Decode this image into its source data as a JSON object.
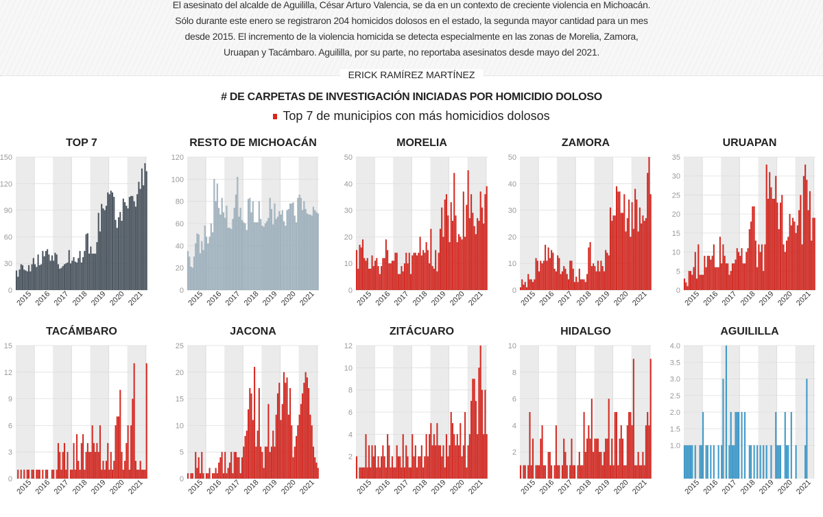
{
  "intro": {
    "lines": [
      "El asesinato del alcalde de Aguililla, César Arturo Valencia, se da en un contexto de creciente violencia en Michoacán.",
      "Sólo durante este enero se registraron 204 homicidos dolosos en el estado, la segunda mayor cantidad para un mes",
      "desde 2015. El incremento de la violencia homicida se detecta especialmente en las zonas de Morelia, Zamora,",
      "Uruapan y Tacámbaro. Aguililla, por su parte, no reportaba asesinatos desde mayo del 2021."
    ]
  },
  "author": "ERICK RAMÍREZ MARTÍNEZ",
  "headline": "# DE CARPETAS DE INVESTIGACIÓN INICIADAS POR HOMICIDIO DOLOSO",
  "legend": {
    "label": "Top 7 de municipios con más homicidios dolosos",
    "color": "#d9241c"
  },
  "colors": {
    "top7": "#4b5661",
    "resto": "#a8bcc9",
    "red": "#e0261e",
    "blue": "#3b9fd4",
    "band": "#ebebeb"
  },
  "chart_data": [
    {
      "type": "bar",
      "title": "TOP 7",
      "color": "top7",
      "ylim": [
        0,
        150
      ],
      "yticks": [
        "0",
        "30",
        "60",
        "90",
        "120",
        "150"
      ],
      "xticks": [
        "2015",
        "2016",
        "2017",
        "2018",
        "2019",
        "2020",
        "2021"
      ],
      "values": [
        22,
        15,
        23,
        29,
        28,
        23,
        22,
        21,
        28,
        21,
        29,
        36,
        29,
        26,
        40,
        28,
        29,
        44,
        38,
        44,
        46,
        40,
        33,
        39,
        33,
        42,
        40,
        29,
        24,
        25,
        27,
        29,
        30,
        31,
        45,
        30,
        33,
        37,
        32,
        31,
        36,
        44,
        31,
        37,
        44,
        63,
        64,
        41,
        49,
        41,
        41,
        41,
        54,
        87,
        66,
        97,
        92,
        90,
        95,
        110,
        108,
        112,
        110,
        105,
        79,
        70,
        82,
        88,
        78,
        103,
        99,
        95,
        92,
        105,
        106,
        106,
        100,
        94,
        108,
        122,
        114,
        137,
        118,
        143,
        134
      ]
    },
    {
      "type": "bar",
      "title": "RESTO DE MICHOACÁN",
      "color": "resto",
      "ylim": [
        0,
        120
      ],
      "yticks": [
        "0",
        "20",
        "40",
        "60",
        "80",
        "100",
        "120"
      ],
      "xticks": [
        "2015",
        "2016",
        "2017",
        "2018",
        "2019",
        "2020",
        "2021"
      ],
      "values": [
        35,
        30,
        21,
        20,
        30,
        42,
        51,
        50,
        33,
        44,
        36,
        58,
        48,
        42,
        48,
        60,
        52,
        100,
        80,
        96,
        74,
        68,
        83,
        70,
        65,
        76,
        56,
        56,
        55,
        64,
        74,
        86,
        102,
        66,
        74,
        63,
        61,
        60,
        54,
        82,
        83,
        70,
        80,
        61,
        61,
        61,
        80,
        64,
        58,
        57,
        60,
        62,
        65,
        83,
        73,
        59,
        78,
        64,
        66,
        71,
        68,
        72,
        62,
        58,
        72,
        73,
        78,
        78,
        79,
        67,
        61,
        83,
        86,
        83,
        72,
        80,
        73,
        69,
        68,
        68,
        67,
        75,
        72,
        70,
        69
      ]
    },
    {
      "type": "bar",
      "title": "MORELIA",
      "color": "red",
      "ylim": [
        0,
        50
      ],
      "yticks": [
        "0",
        "10",
        "20",
        "30",
        "40",
        "50"
      ],
      "xticks": [
        "2015",
        "2016",
        "2017",
        "2018",
        "2019",
        "2020",
        "2021"
      ],
      "values": [
        15,
        8,
        17,
        16,
        19,
        12,
        11,
        12,
        8,
        8,
        13,
        9,
        11,
        12,
        9,
        6,
        9,
        12,
        12,
        19,
        15,
        10,
        10,
        11,
        11,
        14,
        14,
        6,
        6,
        9,
        7,
        10,
        14,
        10,
        14,
        6,
        13,
        14,
        14,
        13,
        14,
        20,
        13,
        15,
        14,
        18,
        15,
        10,
        23,
        9,
        8,
        15,
        7,
        14,
        23,
        31,
        20,
        34,
        36,
        28,
        18,
        33,
        26,
        44,
        28,
        18,
        21,
        20,
        19,
        37,
        20,
        32,
        45,
        27,
        36,
        29,
        24,
        21,
        27,
        26,
        37,
        31,
        25,
        36,
        39
      ]
    },
    {
      "type": "bar",
      "title": "ZAMORA",
      "color": "red",
      "ylim": [
        0,
        50
      ],
      "yticks": [
        "0",
        "10",
        "20",
        "30",
        "40",
        "50"
      ],
      "xticks": [
        "2015",
        "2016",
        "2017",
        "2018",
        "2019",
        "2020",
        "2021"
      ],
      "values": [
        1,
        4,
        2,
        3,
        1,
        6,
        4,
        4,
        3,
        4,
        12,
        11,
        7,
        11,
        10,
        11,
        17,
        11,
        16,
        12,
        15,
        14,
        8,
        7,
        13,
        12,
        6,
        7,
        9,
        8,
        6,
        4,
        11,
        11,
        8,
        3,
        5,
        3,
        8,
        4,
        4,
        4,
        3,
        6,
        16,
        18,
        9,
        10,
        9,
        7,
        11,
        7,
        11,
        9,
        7,
        15,
        14,
        13,
        31,
        26,
        28,
        28,
        39,
        37,
        37,
        29,
        29,
        36,
        22,
        27,
        34,
        20,
        33,
        23,
        38,
        34,
        22,
        31,
        25,
        28,
        26,
        27,
        44,
        50,
        36
      ]
    },
    {
      "type": "bar",
      "title": "URUAPAN",
      "color": "red",
      "ylim": [
        0,
        35
      ],
      "yticks": [
        "0",
        "5",
        "10",
        "15",
        "20",
        "25",
        "30",
        "35"
      ],
      "xticks": [
        "2015",
        "2016",
        "2017",
        "2018",
        "2019",
        "2020",
        "2021"
      ],
      "values": [
        3,
        2,
        1,
        5,
        5,
        4,
        6,
        10,
        3,
        12,
        4,
        4,
        4,
        9,
        6,
        9,
        9,
        8,
        9,
        12,
        6,
        6,
        6,
        14,
        7,
        12,
        9,
        7,
        7,
        4,
        5,
        7,
        7,
        8,
        11,
        10,
        9,
        11,
        7,
        7,
        10,
        11,
        16,
        18,
        22,
        22,
        13,
        6,
        12,
        10,
        12,
        5,
        12,
        33,
        24,
        31,
        27,
        24,
        24,
        30,
        23,
        16,
        23,
        25,
        12,
        10,
        13,
        14,
        20,
        17,
        19,
        18,
        15,
        17,
        21,
        25,
        12,
        30,
        33,
        29,
        21,
        26,
        13,
        19,
        19
      ]
    },
    {
      "type": "bar",
      "title": "TACÁMBARO",
      "color": "red",
      "ylim": [
        0,
        15
      ],
      "yticks": [
        "0",
        "3",
        "6",
        "9",
        "12",
        "15"
      ],
      "xticks": [
        "2015",
        "2016",
        "2017",
        "2018",
        "2019",
        "2020",
        "2021"
      ],
      "values": [
        0,
        1,
        0,
        1,
        0,
        1,
        0,
        1,
        1,
        0,
        1,
        1,
        0,
        1,
        1,
        1,
        0,
        1,
        0,
        1,
        1,
        0,
        0,
        1,
        1,
        0,
        1,
        4,
        3,
        1,
        3,
        4,
        1,
        3,
        0,
        1,
        1,
        4,
        1,
        5,
        2,
        1,
        4,
        5,
        1,
        3,
        4,
        3,
        3,
        6,
        4,
        3,
        4,
        3,
        6,
        1,
        2,
        1,
        2,
        4,
        1,
        3,
        1,
        2,
        6,
        7,
        7,
        10,
        3,
        1,
        2,
        4,
        6,
        1,
        6,
        9,
        13,
        2,
        1,
        1,
        2,
        1,
        1,
        1,
        13
      ]
    },
    {
      "type": "bar",
      "title": "JACONA",
      "color": "red",
      "ylim": [
        0,
        25
      ],
      "yticks": [
        "0",
        "5",
        "10",
        "15",
        "20",
        "25"
      ],
      "xticks": [
        "2015",
        "2016",
        "2017",
        "2018",
        "2019",
        "2020",
        "2021"
      ],
      "values": [
        1,
        0,
        1,
        1,
        0,
        5,
        2,
        4,
        1,
        5,
        1,
        0,
        1,
        1,
        2,
        0,
        1,
        1,
        2,
        1,
        3,
        4,
        5,
        1,
        5,
        1,
        2,
        3,
        5,
        1,
        5,
        5,
        4,
        4,
        1,
        4,
        6,
        8,
        9,
        13,
        17,
        16,
        11,
        21,
        6,
        9,
        17,
        6,
        5,
        2,
        6,
        6,
        14,
        5,
        6,
        9,
        6,
        12,
        16,
        18,
        11,
        14,
        20,
        18,
        19,
        12,
        17,
        10,
        4,
        6,
        8,
        10,
        12,
        14,
        16,
        18,
        20,
        19,
        17,
        12,
        10,
        6,
        4,
        3,
        2
      ]
    },
    {
      "type": "bar",
      "title": "ZITÁCUARO",
      "color": "red",
      "ylim": [
        0,
        12
      ],
      "yticks": [
        "2",
        "4",
        "6",
        "8",
        "10",
        "12"
      ],
      "xticks": [
        "2015",
        "2016",
        "2017",
        "2018",
        "2019",
        "2020",
        "2021"
      ],
      "values": [
        2,
        0,
        1,
        1,
        1,
        1,
        4,
        1,
        3,
        1,
        3,
        2,
        3,
        1,
        2,
        1,
        2,
        3,
        2,
        1,
        4,
        3,
        1,
        2,
        1,
        1,
        3,
        2,
        2,
        1,
        4,
        1,
        3,
        2,
        1,
        1,
        4,
        2,
        3,
        1,
        2,
        2,
        3,
        1,
        2,
        4,
        2,
        4,
        5,
        3,
        4,
        3,
        5,
        3,
        3,
        2,
        3,
        1,
        4,
        2,
        3,
        6,
        5,
        4,
        3,
        4,
        3,
        5,
        2,
        3,
        6,
        1,
        3,
        4,
        7,
        9,
        9,
        7,
        4,
        10,
        12,
        8,
        4,
        8,
        4
      ]
    },
    {
      "type": "bar",
      "title": "HIDALGO",
      "color": "red",
      "ylim": [
        0,
        10
      ],
      "yticks": [
        "2",
        "4",
        "6",
        "8",
        "10"
      ],
      "xticks": [
        "2015",
        "2016",
        "2017",
        "2018",
        "2019",
        "2020",
        "2021"
      ],
      "values": [
        1,
        0,
        1,
        1,
        0,
        1,
        5,
        1,
        3,
        0,
        1,
        1,
        1,
        3,
        4,
        1,
        1,
        0,
        2,
        2,
        1,
        0,
        1,
        4,
        1,
        1,
        0,
        1,
        3,
        2,
        1,
        0,
        1,
        3,
        1,
        1,
        0,
        1,
        2,
        1,
        1,
        5,
        2,
        3,
        4,
        3,
        6,
        2,
        3,
        3,
        3,
        2,
        2,
        1,
        2,
        3,
        3,
        6,
        1,
        3,
        1,
        5,
        5,
        1,
        3,
        4,
        3,
        1,
        1,
        4,
        5,
        5,
        4,
        9,
        1,
        1,
        2,
        1,
        1,
        2,
        1,
        4,
        5,
        4,
        9
      ]
    },
    {
      "type": "bar",
      "title": "AGUILILLA",
      "color": "blue",
      "ylim": [
        0,
        4
      ],
      "yticks": [
        "1.0",
        "1.5",
        "2.0",
        "2.5",
        "3.0",
        "3.5",
        "4.0"
      ],
      "xticks": [
        "2015",
        "2016",
        "2017",
        "2018",
        "2019",
        "2020",
        "2021"
      ],
      "values": [
        1,
        1,
        1,
        1,
        1,
        1,
        0,
        1,
        0,
        0,
        1,
        1,
        2,
        0,
        1,
        1,
        0,
        1,
        0,
        1,
        0,
        0,
        1,
        0,
        1,
        3,
        0,
        4,
        0,
        1,
        2,
        1,
        1,
        2,
        2,
        2,
        0,
        2,
        0,
        2,
        0,
        0,
        1,
        1,
        0,
        1,
        0,
        1,
        0,
        1,
        0,
        1,
        0,
        1,
        0,
        0,
        1,
        0,
        0,
        2,
        1,
        1,
        1,
        0,
        0,
        2,
        1,
        1,
        0,
        2,
        0,
        0,
        1,
        0,
        0,
        0,
        0,
        0,
        1,
        3,
        0,
        0,
        0,
        0,
        0
      ]
    }
  ]
}
